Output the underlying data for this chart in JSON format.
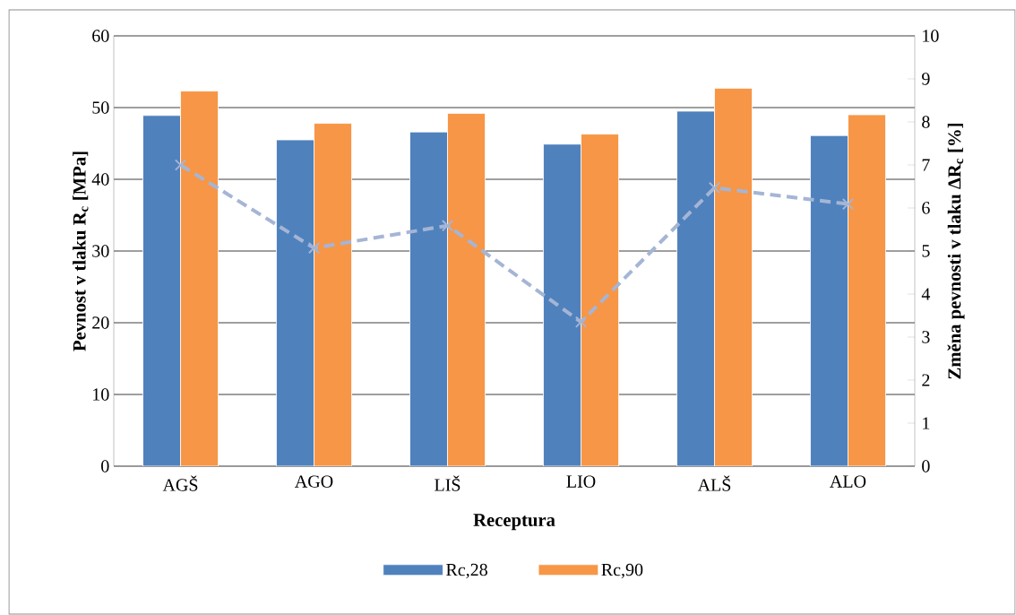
{
  "chart_data": {
    "type": "bar",
    "xlabel": "Receptura",
    "ylabel": "Pevnost v tlaku R$_{c}$ [MPa]",
    "y2label": "Změna pevnosti v tlaku ΔR$_{c}$ [%]",
    "categories": [
      "AGŠ",
      "AGO",
      "LIŠ",
      "LIO",
      "ALŠ",
      "ALO"
    ],
    "series": [
      {
        "name": "Rc,28",
        "color": "#4f81bd",
        "values": [
          48.9,
          45.5,
          46.6,
          44.9,
          49.5,
          46.1
        ]
      },
      {
        "name": "Rc,90",
        "color": "#f79646",
        "values": [
          52.3,
          47.8,
          49.2,
          46.3,
          52.7,
          49.0
        ]
      },
      {
        "type": "line",
        "axis": "y2",
        "color": "#a5b5d5",
        "marker": "cross",
        "line_style": "dashed",
        "values": [
          7.0,
          5.07,
          5.59,
          3.35,
          6.47,
          6.09
        ]
      }
    ],
    "ylim": [
      0,
      60
    ],
    "yticks": [
      0,
      10,
      20,
      30,
      40,
      50,
      60
    ],
    "y2lim": [
      0,
      10
    ],
    "y2ticks": [
      0,
      1,
      2,
      3,
      4,
      5,
      6,
      7,
      8,
      9,
      10
    ],
    "grid": "y",
    "legend": "bottom"
  }
}
